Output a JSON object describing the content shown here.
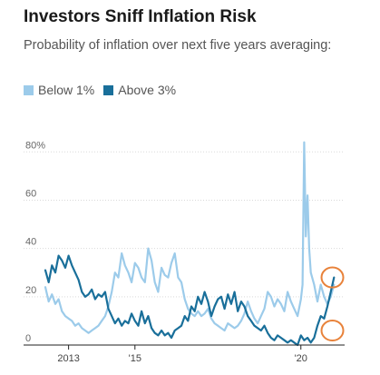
{
  "chart_data": {
    "type": "line",
    "title": "Investors Sniff Inflation Risk",
    "subtitle": "Probability of inflation over next five years averaging:",
    "xlabel": "",
    "ylabel": "",
    "ylim": [
      0,
      85
    ],
    "y_ticks": [
      0,
      20,
      40,
      60,
      80
    ],
    "y_tick_labels": [
      "0",
      "20",
      "40",
      "60",
      "80%"
    ],
    "x_ticks": [
      2013,
      2015,
      2020
    ],
    "x_tick_labels": [
      "2013",
      "'15",
      "'20"
    ],
    "xlim": [
      2012.3,
      2021.1
    ],
    "grid": "horizontal",
    "legend_position": "top-left",
    "series": [
      {
        "name": "Below 1%",
        "color": "#9ccbea",
        "x": [
          2012.3,
          2012.4,
          2012.5,
          2012.6,
          2012.7,
          2012.8,
          2012.9,
          2013.0,
          2013.1,
          2013.2,
          2013.3,
          2013.4,
          2013.5,
          2013.6,
          2013.7,
          2013.8,
          2013.9,
          2014.0,
          2014.1,
          2014.2,
          2014.3,
          2014.4,
          2014.5,
          2014.6,
          2014.7,
          2014.8,
          2014.9,
          2015.0,
          2015.1,
          2015.2,
          2015.3,
          2015.4,
          2015.5,
          2015.6,
          2015.7,
          2015.8,
          2015.9,
          2016.0,
          2016.1,
          2016.2,
          2016.3,
          2016.4,
          2016.5,
          2016.6,
          2016.7,
          2016.8,
          2016.9,
          2017.0,
          2017.1,
          2017.2,
          2017.3,
          2017.4,
          2017.5,
          2017.6,
          2017.7,
          2017.8,
          2017.9,
          2018.0,
          2018.1,
          2018.2,
          2018.3,
          2018.4,
          2018.5,
          2018.6,
          2018.7,
          2018.8,
          2018.9,
          2019.0,
          2019.1,
          2019.2,
          2019.3,
          2019.4,
          2019.5,
          2019.6,
          2019.7,
          2019.8,
          2019.9,
          2020.0,
          2020.05,
          2020.1,
          2020.15,
          2020.2,
          2020.25,
          2020.3,
          2020.4,
          2020.5,
          2020.6,
          2020.7,
          2020.8,
          2020.9,
          2021.0
        ],
        "values": [
          24,
          18,
          21,
          17,
          19,
          14,
          12,
          11,
          10,
          8,
          9,
          7,
          6,
          5,
          6,
          7,
          8,
          10,
          12,
          16,
          22,
          30,
          28,
          38,
          33,
          30,
          26,
          34,
          32,
          28,
          26,
          40,
          35,
          26,
          22,
          32,
          29,
          28,
          34,
          38,
          28,
          26,
          19,
          15,
          13,
          12,
          14,
          12,
          13,
          15,
          11,
          9,
          8,
          7,
          6,
          9,
          8,
          7,
          8,
          10,
          13,
          18,
          14,
          11,
          9,
          12,
          15,
          22,
          20,
          16,
          19,
          17,
          14,
          22,
          18,
          15,
          12,
          19,
          25,
          84,
          45,
          62,
          40,
          30,
          25,
          18,
          25,
          20,
          17,
          20,
          25
        ]
      },
      {
        "name": "Above 3%",
        "color": "#196f9a",
        "x": [
          2012.3,
          2012.4,
          2012.5,
          2012.6,
          2012.7,
          2012.8,
          2012.9,
          2013.0,
          2013.1,
          2013.2,
          2013.3,
          2013.4,
          2013.5,
          2013.6,
          2013.7,
          2013.8,
          2013.9,
          2014.0,
          2014.1,
          2014.2,
          2014.3,
          2014.4,
          2014.5,
          2014.6,
          2014.7,
          2014.8,
          2014.9,
          2015.0,
          2015.1,
          2015.2,
          2015.3,
          2015.4,
          2015.5,
          2015.6,
          2015.7,
          2015.8,
          2015.9,
          2016.0,
          2016.1,
          2016.2,
          2016.3,
          2016.4,
          2016.5,
          2016.6,
          2016.7,
          2016.8,
          2016.9,
          2017.0,
          2017.1,
          2017.2,
          2017.3,
          2017.4,
          2017.5,
          2017.6,
          2017.7,
          2017.8,
          2017.9,
          2018.0,
          2018.1,
          2018.2,
          2018.3,
          2018.4,
          2018.5,
          2018.6,
          2018.7,
          2018.8,
          2018.9,
          2019.0,
          2019.1,
          2019.2,
          2019.3,
          2019.4,
          2019.5,
          2019.6,
          2019.7,
          2019.8,
          2019.9,
          2020.0,
          2020.1,
          2020.2,
          2020.3,
          2020.4,
          2020.5,
          2020.6,
          2020.7,
          2020.8,
          2020.9,
          2021.0
        ],
        "values": [
          31,
          26,
          33,
          30,
          37,
          35,
          32,
          37,
          33,
          30,
          27,
          22,
          20,
          21,
          23,
          19,
          21,
          20,
          22,
          15,
          12,
          9,
          11,
          8,
          10,
          9,
          13,
          10,
          8,
          14,
          9,
          12,
          7,
          5,
          4,
          6,
          4,
          5,
          3,
          6,
          7,
          8,
          12,
          10,
          16,
          14,
          20,
          17,
          22,
          18,
          12,
          16,
          19,
          20,
          15,
          21,
          17,
          22,
          14,
          18,
          16,
          12,
          10,
          8,
          7,
          6,
          8,
          5,
          3,
          2,
          4,
          3,
          2,
          1,
          2,
          1,
          0,
          4,
          2,
          3,
          1,
          3,
          8,
          12,
          11,
          16,
          22,
          28
        ]
      }
    ],
    "annotations": [
      {
        "type": "circle",
        "color": "#e8823a",
        "x": 2020.95,
        "y": 28
      },
      {
        "type": "circle",
        "color": "#e8823a",
        "x": 2020.95,
        "y": 6
      }
    ]
  }
}
